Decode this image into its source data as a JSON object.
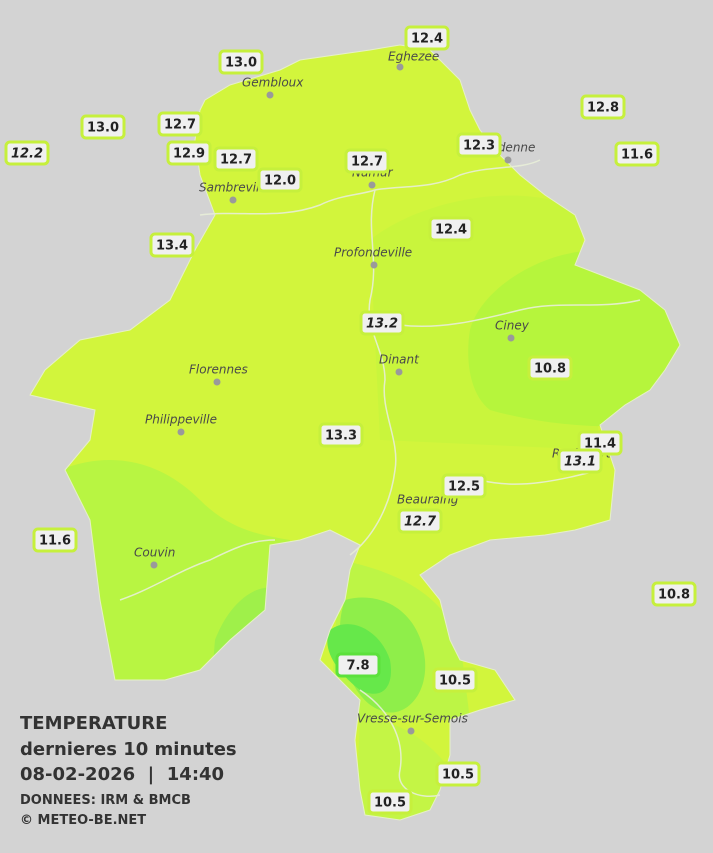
{
  "map": {
    "cities": [
      "Eghezee",
      "Gembloux",
      "Andenne",
      "Namur",
      "Sambreville",
      "Profondeville",
      "Ciney",
      "Dinant",
      "Florennes",
      "Philippeville",
      "Rochefort",
      "Beauraing",
      "Couvin",
      "Vresse-sur-Semois"
    ],
    "stations": [
      {
        "value": "12.4"
      },
      {
        "value": "13.0"
      },
      {
        "value": "12.8"
      },
      {
        "value": "13.0"
      },
      {
        "value": "12.7"
      },
      {
        "value": "12.2",
        "italic": true
      },
      {
        "value": "12.9"
      },
      {
        "value": "12.7"
      },
      {
        "value": "12.3"
      },
      {
        "value": "11.6"
      },
      {
        "value": "12.7"
      },
      {
        "value": "12.0"
      },
      {
        "value": "13.4"
      },
      {
        "value": "12.4"
      },
      {
        "value": "13.2",
        "italic": true
      },
      {
        "value": "10.8"
      },
      {
        "value": "13.3"
      },
      {
        "value": "11.4"
      },
      {
        "value": "13.1",
        "italic": true
      },
      {
        "value": "12.5"
      },
      {
        "value": "12.7",
        "italic": true
      },
      {
        "value": "11.6"
      },
      {
        "value": "10.8"
      },
      {
        "value": "7.8"
      },
      {
        "value": "10.5"
      },
      {
        "value": "10.5"
      },
      {
        "value": "10.5"
      }
    ],
    "legend": {
      "title": "TEMPERATURE",
      "subtitle": "dernieres 10 minutes",
      "datetime": "08-02-2026  |  14:40",
      "source": "DONNEES: IRM & BMCB",
      "copyright": "© METEO-BE.NET"
    }
  }
}
